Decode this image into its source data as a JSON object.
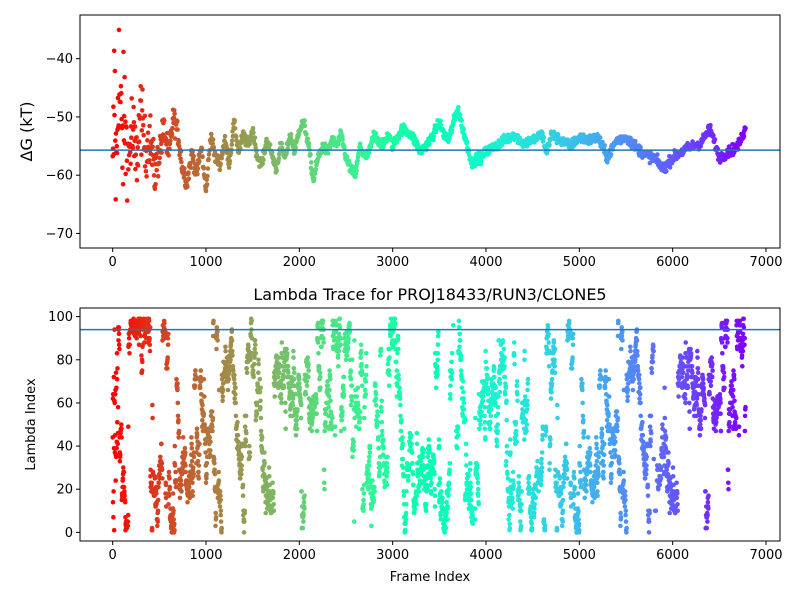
{
  "chart_data": [
    {
      "type": "scatter",
      "title": "",
      "xlabel": "",
      "ylabel": "ΔG (kT)",
      "xlim": [
        -350,
        7150
      ],
      "ylim": [
        -72.5,
        -32.5
      ],
      "xticks": [
        0,
        1000,
        2000,
        3000,
        4000,
        5000,
        6000,
        7000
      ],
      "yticks": [
        -70,
        -60,
        -50,
        -40
      ],
      "colormap": "rainbow (red → violet with increasing frame index)",
      "reference_line": {
        "y": -55.7,
        "color": "#1f77b4"
      },
      "frames": [
        0,
        6780
      ],
      "trace_profile": {
        "x": [
          0,
          20,
          40,
          60,
          80,
          100,
          130,
          160,
          200,
          250,
          300,
          350,
          400,
          450,
          500,
          550,
          600,
          650,
          700,
          750,
          800,
          850,
          900,
          950,
          1000,
          1050,
          1100,
          1150,
          1200,
          1250,
          1300,
          1350,
          1400,
          1450,
          1500,
          1550,
          1600,
          1650,
          1700,
          1750,
          1800,
          1850,
          1900,
          1950,
          2000,
          2050,
          2100,
          2150,
          2200,
          2250,
          2300,
          2350,
          2400,
          2450,
          2500,
          2550,
          2600,
          2650,
          2700,
          2750,
          2800,
          2850,
          2900,
          2950,
          3000,
          3100,
          3200,
          3300,
          3400,
          3500,
          3550,
          3600,
          3650,
          3700,
          3750,
          3800,
          3850,
          3900,
          3950,
          4000,
          4100,
          4200,
          4300,
          4400,
          4500,
          4600,
          4650,
          4700,
          4800,
          4900,
          5000,
          5100,
          5200,
          5300,
          5400,
          5500,
          5600,
          5700,
          5800,
          5900,
          6000,
          6100,
          6200,
          6300,
          6400,
          6500,
          6600,
          6700,
          6780
        ],
        "y": [
          -66,
          -45,
          -62,
          -40,
          -48,
          -55,
          -50,
          -60,
          -52,
          -58,
          -49,
          -56,
          -53,
          -60,
          -56,
          -52,
          -57,
          -50,
          -53,
          -59,
          -61,
          -56,
          -60,
          -55,
          -63,
          -53,
          -57,
          -58,
          -54,
          -58,
          -51,
          -56,
          -53,
          -55,
          -52,
          -57,
          -58,
          -54,
          -56,
          -59,
          -55,
          -57,
          -53,
          -56,
          -52,
          -51,
          -55,
          -61,
          -57,
          -55,
          -56,
          -54,
          -55,
          -53,
          -57,
          -59,
          -60,
          -55,
          -57,
          -56,
          -53,
          -54,
          -55,
          -53,
          -55,
          -52,
          -53,
          -56,
          -54,
          -51,
          -53,
          -54,
          -51,
          -48.5,
          -52,
          -55,
          -58,
          -57,
          -57,
          -56,
          -55,
          -54,
          -53,
          -54.5,
          -54,
          -53,
          -56,
          -53,
          -54,
          -55,
          -53.5,
          -54,
          -53.5,
          -57,
          -54,
          -53.5,
          -55,
          -56.5,
          -57,
          -59,
          -57,
          -56,
          -55,
          -54.5,
          -52,
          -57,
          -56,
          -55,
          -52
        ]
      },
      "early_scatter_spread": 12
    },
    {
      "type": "scatter",
      "title": "Lambda Trace for PROJ18433/RUN3/CLONE5",
      "xlabel": "Frame Index",
      "ylabel": "Lambda Index",
      "xlim": [
        -350,
        7150
      ],
      "ylim": [
        -4,
        104
      ],
      "xticks": [
        0,
        1000,
        2000,
        3000,
        4000,
        5000,
        6000,
        7000
      ],
      "yticks": [
        0,
        20,
        40,
        60,
        80,
        100
      ],
      "colormap": "rainbow (red → violet with increasing frame index)",
      "reference_line": {
        "y": 94,
        "color": "#1f77b4"
      },
      "frames": [
        0,
        6780
      ],
      "lambda_range": [
        0,
        99
      ],
      "sparse_bands": [
        [
          3640,
          3680
        ],
        [
          3860,
          3880
        ],
        [
          5800,
          5830
        ]
      ]
    }
  ]
}
